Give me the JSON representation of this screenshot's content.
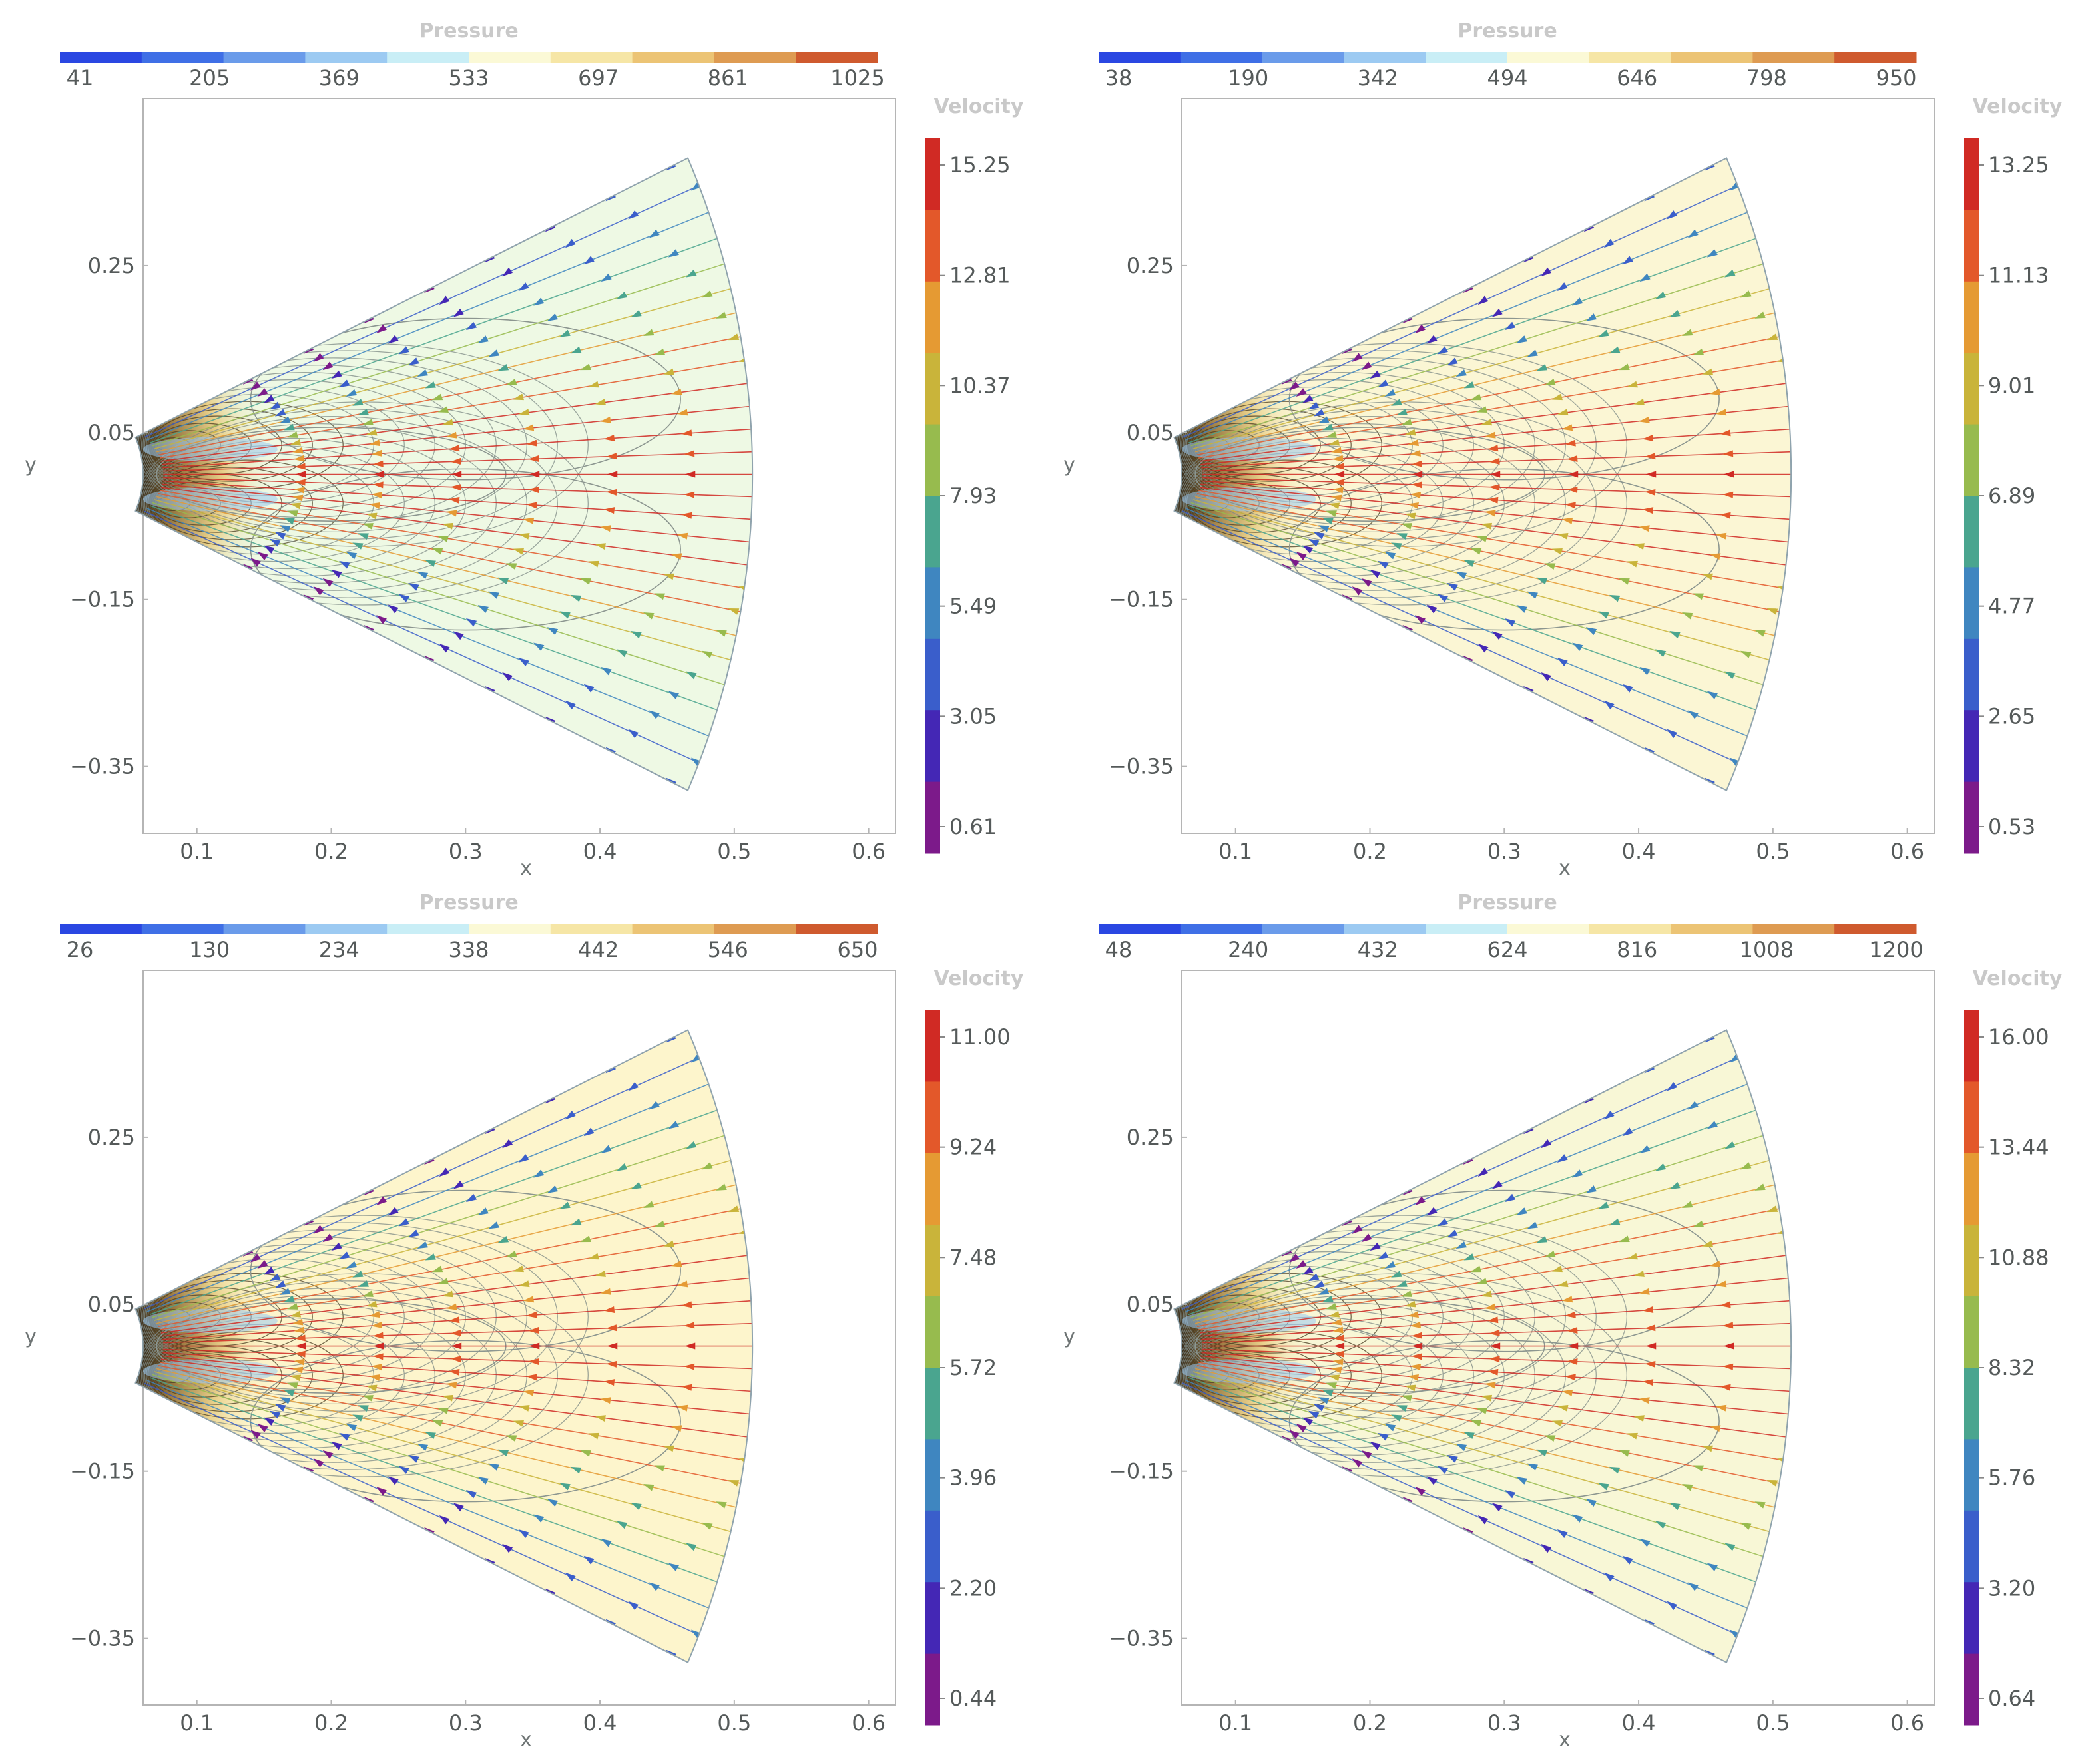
{
  "chart_data": [
    {
      "type": "streamplot",
      "pressure_legend": {
        "title": "Pressure",
        "ticks": [
          41,
          205,
          369,
          533,
          697,
          861,
          1025
        ]
      },
      "velocity_legend": {
        "title": "Velocity",
        "ticks": [
          15.25,
          12.81,
          10.37,
          7.93,
          5.49,
          3.05,
          0.61
        ],
        "tick_labels": [
          "15.25",
          "12.81",
          "10.37",
          "7.93",
          "5.49",
          "3.05",
          "0.61"
        ]
      },
      "xlabel": "x",
      "ylabel": "y",
      "xticks": [
        0.1,
        0.2,
        0.3,
        0.4,
        0.5,
        0.6
      ],
      "yticks": [
        0.25,
        0.05,
        -0.15,
        -0.35
      ],
      "ytick_labels": [
        "0.25",
        "0.05",
        "−0.15",
        "−0.35"
      ],
      "xlim": [
        0.06,
        0.62
      ],
      "ylim": [
        -0.43,
        0.45
      ],
      "background_color": "#eef9e4"
    },
    {
      "type": "streamplot",
      "pressure_legend": {
        "title": "Pressure",
        "ticks": [
          38,
          190,
          342,
          494,
          646,
          798,
          950
        ]
      },
      "velocity_legend": {
        "title": "Velocity",
        "ticks": [
          13.25,
          11.13,
          9.01,
          6.89,
          4.77,
          2.65,
          0.53
        ],
        "tick_labels": [
          "13.25",
          "11.13",
          "9.01",
          "6.89",
          "4.77",
          "2.65",
          "0.53"
        ]
      },
      "xlabel": "x",
      "ylabel": "y",
      "xticks": [
        0.1,
        0.2,
        0.3,
        0.4,
        0.5,
        0.6
      ],
      "yticks": [
        0.25,
        0.05,
        -0.15,
        -0.35
      ],
      "ytick_labels": [
        "0.25",
        "0.05",
        "−0.15",
        "−0.35"
      ],
      "xlim": [
        0.06,
        0.62
      ],
      "ylim": [
        -0.43,
        0.45
      ],
      "background_color": "#fbf6d4"
    },
    {
      "type": "streamplot",
      "pressure_legend": {
        "title": "Pressure",
        "ticks": [
          26,
          130,
          234,
          338,
          442,
          546,
          650
        ]
      },
      "velocity_legend": {
        "title": "Velocity",
        "ticks": [
          11.0,
          9.24,
          7.48,
          5.72,
          3.96,
          2.2,
          0.44
        ],
        "tick_labels": [
          "11.00",
          "9.24",
          "7.48",
          "5.72",
          "3.96",
          "2.20",
          "0.44"
        ]
      },
      "xlabel": "x",
      "ylabel": "y",
      "xticks": [
        0.1,
        0.2,
        0.3,
        0.4,
        0.5,
        0.6
      ],
      "yticks": [
        0.25,
        0.05,
        -0.15,
        -0.35
      ],
      "ytick_labels": [
        "0.25",
        "0.05",
        "−0.15",
        "−0.35"
      ],
      "xlim": [
        0.06,
        0.62
      ],
      "ylim": [
        -0.43,
        0.45
      ],
      "background_color": "#fdf5cc"
    },
    {
      "type": "streamplot",
      "pressure_legend": {
        "title": "Pressure",
        "ticks": [
          48,
          240,
          432,
          624,
          816,
          1008,
          1200
        ]
      },
      "velocity_legend": {
        "title": "Velocity",
        "ticks": [
          16.0,
          13.44,
          10.88,
          8.32,
          5.76,
          3.2,
          0.64
        ],
        "tick_labels": [
          "16.00",
          "13.44",
          "10.88",
          "8.32",
          "5.76",
          "3.20",
          "0.64"
        ]
      },
      "xlabel": "x",
      "ylabel": "y",
      "xticks": [
        0.1,
        0.2,
        0.3,
        0.4,
        0.5,
        0.6
      ],
      "yticks": [
        0.25,
        0.05,
        -0.15,
        -0.35
      ],
      "ytick_labels": [
        "0.25",
        "0.05",
        "−0.15",
        "−0.35"
      ],
      "xlim": [
        0.06,
        0.62
      ],
      "ylim": [
        -0.43,
        0.45
      ],
      "background_color": "#f8f7d6"
    }
  ],
  "palettes": {
    "pressure": [
      "#2a47e2",
      "#3f6fe6",
      "#6a9bea",
      "#9ccaf2",
      "#c9eef6",
      "#fbf9d6",
      "#f6e6a6",
      "#ecc475",
      "#de9b52",
      "#cf5a2e"
    ],
    "velocity": [
      "#d02a24",
      "#e3582a",
      "#e59a33",
      "#c9b43a",
      "#97bb4e",
      "#4aa58f",
      "#3f86c0",
      "#3a5ecb",
      "#4427b5",
      "#7c1a8a"
    ],
    "frame": "#b5b5b5",
    "boundary": "#8fa3ad"
  }
}
